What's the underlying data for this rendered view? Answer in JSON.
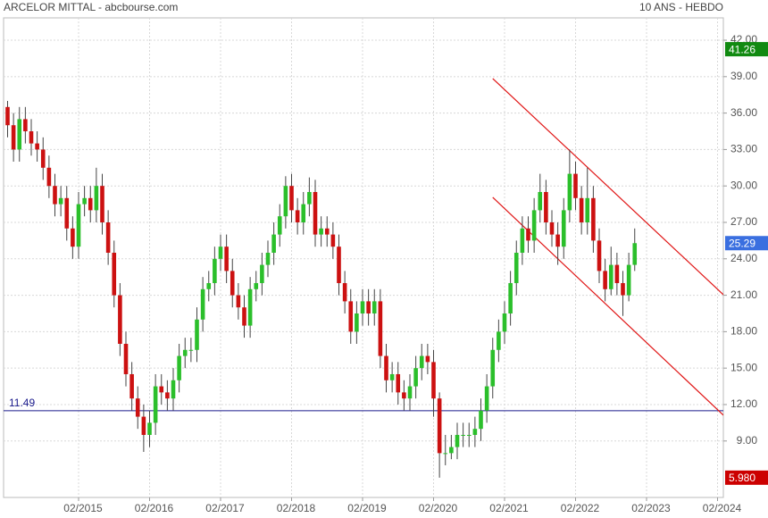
{
  "chart_data": {
    "type": "candlestick",
    "title": "ARCELOR MITTAL - abcbourse.com",
    "subtitle": "10 ANS - HEBDO",
    "x": [
      "2014-02",
      "2014-03",
      "2014-04",
      "2014-05",
      "2014-06",
      "2014-07",
      "2014-08",
      "2014-09",
      "2014-10",
      "2014-11",
      "2014-12",
      "2015-01",
      "2015-02",
      "2015-03",
      "2015-04",
      "2015-05",
      "2015-06",
      "2015-07",
      "2015-08",
      "2015-09",
      "2015-10",
      "2015-11",
      "2015-12",
      "2016-01",
      "2016-02",
      "2016-03",
      "2016-04",
      "2016-05",
      "2016-06",
      "2016-07",
      "2016-08",
      "2016-09",
      "2016-10",
      "2016-11",
      "2016-12",
      "2017-01",
      "2017-02",
      "2017-03",
      "2017-04",
      "2017-05",
      "2017-06",
      "2017-07",
      "2017-08",
      "2017-09",
      "2017-10",
      "2017-11",
      "2017-12",
      "2018-01",
      "2018-02",
      "2018-03",
      "2018-04",
      "2018-05",
      "2018-06",
      "2018-07",
      "2018-08",
      "2018-09",
      "2018-10",
      "2018-11",
      "2018-12",
      "2019-01",
      "2019-02",
      "2019-03",
      "2019-04",
      "2019-05",
      "2019-06",
      "2019-07",
      "2019-08",
      "2019-09",
      "2019-10",
      "2019-11",
      "2019-12",
      "2020-01",
      "2020-02",
      "2020-03",
      "2020-04",
      "2020-05",
      "2020-06",
      "2020-07",
      "2020-08",
      "2020-09",
      "2020-10",
      "2020-11",
      "2020-12",
      "2021-01",
      "2021-02",
      "2021-03",
      "2021-04",
      "2021-05",
      "2021-06",
      "2021-07",
      "2021-08",
      "2021-09",
      "2021-10",
      "2021-11",
      "2021-12",
      "2022-01",
      "2022-02",
      "2022-03",
      "2022-04",
      "2022-05",
      "2022-06",
      "2022-07",
      "2022-08",
      "2022-09",
      "2022-10",
      "2022-11",
      "2022-12"
    ],
    "open": [
      36.5,
      35,
      33,
      35.5,
      34.5,
      33.5,
      33,
      31.5,
      30,
      28.5,
      29,
      26.5,
      25,
      28.5,
      29,
      28,
      30,
      27,
      24.5,
      21,
      17,
      14.5,
      12.5,
      11,
      9.5,
      10.5,
      13.5,
      13,
      12.5,
      14,
      16,
      16.5,
      16.5,
      19,
      21.5,
      22,
      24,
      25,
      23,
      21,
      20,
      18.5,
      21.5,
      22,
      23.5,
      24.5,
      26,
      27.5,
      30,
      28,
      27,
      28.5,
      29.5,
      26,
      26.5,
      26,
      25,
      22,
      20.5,
      18,
      19.5,
      20.5,
      19.5,
      20.5,
      16,
      14,
      14.5,
      13,
      12.5,
      13.5,
      15,
      16,
      15.5,
      12.5,
      8,
      8,
      8.5,
      9.5,
      9.5,
      9.5,
      10,
      11.5,
      13.5,
      16.5,
      18,
      19.5,
      22,
      24.5,
      26.5,
      25.5,
      28,
      29.5,
      27,
      26,
      25,
      28,
      31,
      29,
      27,
      29,
      25.5,
      23,
      21.5,
      23.5,
      22,
      21,
      23.5
    ],
    "high": [
      37,
      36,
      36.5,
      36.5,
      35.5,
      34.5,
      34,
      32.5,
      31,
      30,
      30,
      27.5,
      29.5,
      30,
      30,
      31.5,
      31,
      28,
      25.5,
      22,
      18,
      15.5,
      13.5,
      12,
      11.5,
      14.5,
      14.5,
      14,
      15,
      17,
      17.5,
      17.5,
      20,
      22.5,
      23,
      25,
      26,
      26,
      24,
      22,
      21,
      22.5,
      23,
      24.5,
      25.5,
      27,
      28.5,
      30.8,
      31,
      29,
      29.5,
      30.7,
      30.5,
      27.5,
      27.5,
      27,
      26,
      23,
      21.5,
      20.5,
      21.5,
      21.5,
      21.5,
      21.5,
      17,
      15.5,
      15.5,
      14,
      14.5,
      16,
      17,
      17,
      16.5,
      13,
      9.5,
      9.5,
      10.5,
      10.5,
      10.5,
      11,
      12.5,
      14.5,
      17.5,
      19,
      20.5,
      23,
      25.5,
      27.5,
      27.5,
      29,
      31,
      30.5,
      28,
      27,
      29,
      33,
      32,
      30,
      31.5,
      30,
      26.5,
      24,
      25,
      24.5,
      23,
      24.5,
      26.5
    ],
    "low": [
      34,
      32,
      32,
      33.5,
      32.5,
      32,
      30.5,
      29,
      27.5,
      27.5,
      25.5,
      24,
      24,
      27.5,
      27,
      27,
      26,
      23.5,
      20,
      16,
      13.5,
      11.5,
      10,
      8.1,
      8.5,
      9.5,
      12,
      11.5,
      11.5,
      13,
      15,
      15.5,
      15.5,
      18,
      20.5,
      21,
      23,
      22,
      20,
      19,
      17.5,
      17.5,
      20.5,
      21,
      22.5,
      23.5,
      25,
      26.5,
      27,
      26,
      26,
      27.5,
      25,
      25,
      25,
      24,
      21,
      19.5,
      17,
      17,
      18.5,
      18.5,
      18.5,
      15,
      13,
      13,
      12,
      11.5,
      11.5,
      12.5,
      14,
      14.5,
      11,
      5.98,
      7,
      7.5,
      7.5,
      8.5,
      8.5,
      8.5,
      9,
      10.5,
      12.5,
      15.5,
      17,
      18.5,
      21,
      23.5,
      24.5,
      24.5,
      27,
      26,
      25,
      23.5,
      24,
      27,
      28,
      26,
      26,
      24.5,
      22,
      20.5,
      21,
      21,
      19.3,
      20.5,
      23
    ],
    "close": [
      35,
      33,
      35.5,
      34.5,
      33.5,
      33,
      31.5,
      30,
      28.5,
      29,
      26.5,
      25,
      28.5,
      29,
      28,
      30,
      27,
      24.5,
      21,
      17,
      14.5,
      12.5,
      11,
      9.5,
      10.5,
      13.5,
      13,
      12.5,
      14,
      16,
      16.5,
      16.5,
      19,
      21.5,
      22,
      24,
      25,
      23,
      21,
      20,
      18.5,
      21.5,
      22,
      23.5,
      24.5,
      26,
      27.5,
      30,
      28,
      27,
      28.5,
      29.5,
      26,
      26.5,
      26,
      25,
      22,
      20.5,
      18,
      19.5,
      20.5,
      19.5,
      20.5,
      16,
      14,
      14.5,
      13,
      12.5,
      13.5,
      15,
      16,
      15.5,
      12.5,
      8,
      8,
      8.5,
      9.5,
      9.5,
      9.5,
      10,
      11.5,
      13.5,
      16.5,
      18,
      19.5,
      22,
      24.5,
      26.5,
      25.5,
      28,
      29.5,
      27,
      26,
      25,
      28,
      31,
      29,
      27,
      29,
      25.5,
      23,
      21.5,
      23.5,
      22,
      21,
      23.5,
      25.29
    ],
    "up_color": "#2bbf2b",
    "down_color": "#cc1111",
    "ylim": [
      4.35,
      43.84
    ],
    "yticks": [
      {
        "value": 42,
        "label": "42.00"
      },
      {
        "value": 39,
        "label": "39.00"
      },
      {
        "value": 36,
        "label": "36.00"
      },
      {
        "value": 33,
        "label": "33.00"
      },
      {
        "value": 30,
        "label": "30.00"
      },
      {
        "value": 27,
        "label": "27.00"
      },
      {
        "value": 24,
        "label": "24.00"
      },
      {
        "value": 21,
        "label": "21.00"
      },
      {
        "value": 18,
        "label": "18.00"
      },
      {
        "value": 15,
        "label": "15.00"
      },
      {
        "value": 12,
        "label": "12.00"
      },
      {
        "value": 9,
        "label": "9.00"
      }
    ],
    "xticks": [
      {
        "value": "2015-02",
        "label": "02/2015"
      },
      {
        "value": "2016-02",
        "label": "02/2016"
      },
      {
        "value": "2017-02",
        "label": "02/2017"
      },
      {
        "value": "2018-02",
        "label": "02/2018"
      },
      {
        "value": "2019-02",
        "label": "02/2019"
      },
      {
        "value": "2020-02",
        "label": "02/2020"
      },
      {
        "value": "2021-02",
        "label": "02/2021"
      },
      {
        "value": "2022-02",
        "label": "02/2022"
      },
      {
        "value": "2023-02",
        "label": "02/2023"
      },
      {
        "value": "2024-02",
        "label": "02/2024"
      }
    ],
    "grid": true,
    "hline": {
      "value": 11.49,
      "color": "#1a1a8c"
    },
    "trendlines": [
      {
        "x": [
          "2020-12",
          "2024-03"
        ],
        "values": [
          38.84,
          21.04
        ],
        "color": "#e01515"
      },
      {
        "x": [
          "2020-12",
          "2024-03"
        ],
        "values": [
          29.06,
          11.12
        ],
        "color": "#e01515"
      }
    ],
    "badges": [
      {
        "value": 41.26,
        "color": "#118a11"
      },
      {
        "value": 25.29,
        "color": "#3a6fe0"
      },
      {
        "value": 5.98,
        "label": "5.980",
        "color": "#cc0000"
      }
    ]
  }
}
